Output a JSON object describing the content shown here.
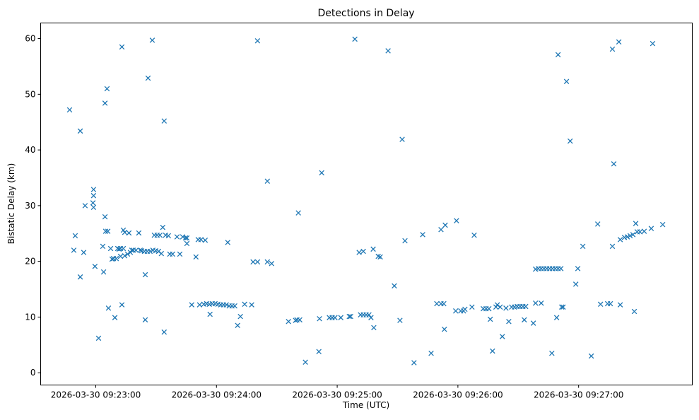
{
  "chart_data": {
    "type": "scatter",
    "title": "Detections in Delay",
    "xlabel": "Time (UTC)",
    "ylabel": "Bistatic Delay (km)",
    "marker": "x",
    "color": "#1f77b4",
    "grid": false,
    "xlim": [
      -27.4,
      296.5
    ],
    "ylim": [
      -2.2,
      62.8
    ],
    "xticks": [
      {
        "value": 0,
        "label": "2026-03-30 09:23:00"
      },
      {
        "value": 60,
        "label": "2026-03-30 09:24:00"
      },
      {
        "value": 120,
        "label": "2026-03-30 09:25:00"
      },
      {
        "value": 180,
        "label": "2026-03-30 09:26:00"
      },
      {
        "value": 240,
        "label": "2026-03-30 09:27:00"
      }
    ],
    "yticks": [
      {
        "value": 0,
        "label": "0"
      },
      {
        "value": 10,
        "label": "10"
      },
      {
        "value": 20,
        "label": "20"
      },
      {
        "value": 30,
        "label": "30"
      },
      {
        "value": 40,
        "label": "40"
      },
      {
        "value": 50,
        "label": "50"
      },
      {
        "value": 60,
        "label": "60"
      }
    ],
    "points": [
      [
        -13,
        47.2
      ],
      [
        -7.7,
        43.4
      ],
      [
        -10.2,
        24.6
      ],
      [
        -10.9,
        22.0
      ],
      [
        -6,
        21.6
      ],
      [
        -7.7,
        17.2
      ],
      [
        -5.3,
        30.0
      ],
      [
        -1.1,
        32.9
      ],
      [
        -1.1,
        31.8
      ],
      [
        -1.4,
        30.5
      ],
      [
        -1.1,
        29.7
      ],
      [
        -0.4,
        19.1
      ],
      [
        1.4,
        6.2
      ],
      [
        4.6,
        48.4
      ],
      [
        5.6,
        51.0
      ],
      [
        4.6,
        28.0
      ],
      [
        4.9,
        25.4
      ],
      [
        6,
        25.4
      ],
      [
        3.5,
        22.7
      ],
      [
        3.9,
        18.1
      ],
      [
        6.3,
        11.6
      ],
      [
        9.5,
        9.9
      ],
      [
        13,
        58.5
      ],
      [
        13,
        12.2
      ],
      [
        13.7,
        25.6
      ],
      [
        14.4,
        25.2
      ],
      [
        16.5,
        25.1
      ],
      [
        7.4,
        22.3
      ],
      [
        8.8,
        20.5
      ],
      [
        10.2,
        20.5
      ],
      [
        8.1,
        20.4
      ],
      [
        10.9,
        22.3
      ],
      [
        12.3,
        22.3
      ],
      [
        13.7,
        22.3
      ],
      [
        11.6,
        22.2
      ],
      [
        12.3,
        20.9
      ],
      [
        14.4,
        21.0
      ],
      [
        15.8,
        21.3
      ],
      [
        17.2,
        21.6
      ],
      [
        17.9,
        22.0
      ],
      [
        18.6,
        22.0
      ],
      [
        20,
        22.0
      ],
      [
        21.4,
        25.1
      ],
      [
        22.1,
        22.0
      ],
      [
        22.8,
        21.9
      ],
      [
        24.2,
        21.8
      ],
      [
        24.6,
        17.6
      ],
      [
        24.6,
        9.5
      ],
      [
        26,
        52.9
      ],
      [
        28.1,
        59.7
      ],
      [
        25.6,
        21.8
      ],
      [
        27,
        21.8
      ],
      [
        28.4,
        22.0
      ],
      [
        29.8,
        21.9
      ],
      [
        29.1,
        24.7
      ],
      [
        30.5,
        24.7
      ],
      [
        31.9,
        24.7
      ],
      [
        31.2,
        21.8
      ],
      [
        32.6,
        21.4
      ],
      [
        33.3,
        26.1
      ],
      [
        34,
        7.3
      ],
      [
        34,
        45.2
      ],
      [
        34.7,
        24.7
      ],
      [
        36.1,
        24.6
      ],
      [
        36.8,
        21.3
      ],
      [
        38.2,
        21.3
      ],
      [
        40.4,
        24.4
      ],
      [
        41.8,
        21.3
      ],
      [
        43.2,
        24.4
      ],
      [
        44.6,
        24.2
      ],
      [
        45.3,
        23.2
      ],
      [
        45.3,
        24.2
      ],
      [
        49.8,
        20.8
      ],
      [
        47.7,
        12.2
      ],
      [
        50.9,
        23.9
      ],
      [
        52.3,
        23.9
      ],
      [
        54.4,
        23.8
      ],
      [
        51.6,
        12.2
      ],
      [
        53.7,
        12.3
      ],
      [
        55.1,
        12.4
      ],
      [
        56.5,
        12.3
      ],
      [
        56.8,
        10.5
      ],
      [
        57.9,
        12.4
      ],
      [
        59.3,
        12.4
      ],
      [
        60.7,
        12.3
      ],
      [
        62.1,
        12.2
      ],
      [
        63.5,
        12.2
      ],
      [
        64.9,
        12.2
      ],
      [
        66.3,
        12.0
      ],
      [
        67.7,
        12.0
      ],
      [
        69.1,
        12.0
      ],
      [
        70.5,
        8.5
      ],
      [
        71.9,
        10.1
      ],
      [
        74,
        12.3
      ],
      [
        65.6,
        23.4
      ],
      [
        77.5,
        12.2
      ],
      [
        78.2,
        19.9
      ],
      [
        80.4,
        19.9
      ],
      [
        80.4,
        59.6
      ],
      [
        85.3,
        34.4
      ],
      [
        85.3,
        19.9
      ],
      [
        87.4,
        19.6
      ],
      [
        95.8,
        9.2
      ],
      [
        99.3,
        9.4
      ],
      [
        100,
        9.5
      ],
      [
        101.4,
        9.5
      ],
      [
        100.7,
        28.7
      ],
      [
        104.2,
        1.9
      ],
      [
        110.9,
        3.8
      ],
      [
        111.2,
        9.7
      ],
      [
        112.3,
        35.9
      ],
      [
        116.1,
        9.9
      ],
      [
        117.5,
        9.9
      ],
      [
        118.9,
        9.9
      ],
      [
        121.8,
        9.9
      ],
      [
        126,
        10.1
      ],
      [
        126.7,
        10.1
      ],
      [
        128.8,
        59.9
      ],
      [
        130.9,
        21.6
      ],
      [
        133,
        21.8
      ],
      [
        131.6,
        10.4
      ],
      [
        133,
        10.4
      ],
      [
        134.4,
        10.4
      ],
      [
        135.8,
        10.4
      ],
      [
        136.8,
        9.9
      ],
      [
        137.9,
        22.2
      ],
      [
        138.2,
        8.1
      ],
      [
        140.4,
        20.9
      ],
      [
        141.4,
        20.8
      ],
      [
        145.3,
        57.8
      ],
      [
        148.4,
        15.6
      ],
      [
        151.2,
        9.4
      ],
      [
        152.3,
        41.9
      ],
      [
        153.7,
        23.7
      ],
      [
        158.2,
        1.8
      ],
      [
        162.5,
        24.8
      ],
      [
        166.7,
        3.5
      ],
      [
        169.5,
        12.4
      ],
      [
        171.6,
        12.4
      ],
      [
        173,
        12.4
      ],
      [
        171.6,
        25.7
      ],
      [
        173.3,
        7.8
      ],
      [
        173.7,
        26.5
      ],
      [
        179.3,
        27.3
      ],
      [
        178.9,
        11.1
      ],
      [
        181.4,
        11.1
      ],
      [
        182.8,
        11.1
      ],
      [
        183.5,
        11.4
      ],
      [
        187,
        11.8
      ],
      [
        188.1,
        24.7
      ],
      [
        192.6,
        11.5
      ],
      [
        194,
        11.5
      ],
      [
        195.4,
        11.5
      ],
      [
        196.1,
        9.6
      ],
      [
        197.2,
        3.9
      ],
      [
        198.9,
        11.8
      ],
      [
        199.6,
        12.2
      ],
      [
        201,
        11.8
      ],
      [
        202.1,
        6.5
      ],
      [
        203.9,
        11.6
      ],
      [
        205.3,
        9.2
      ],
      [
        206.7,
        11.8
      ],
      [
        208.1,
        11.8
      ],
      [
        209.5,
        11.9
      ],
      [
        210.9,
        11.9
      ],
      [
        212.3,
        11.9
      ],
      [
        213.7,
        11.9
      ],
      [
        213,
        9.5
      ],
      [
        217.5,
        8.9
      ],
      [
        218.6,
        12.5
      ],
      [
        218.6,
        18.6
      ],
      [
        220,
        18.7
      ],
      [
        221.4,
        18.7
      ],
      [
        222.8,
        18.7
      ],
      [
        224.2,
        18.7
      ],
      [
        225.6,
        18.7
      ],
      [
        227,
        18.7
      ],
      [
        228.4,
        18.7
      ],
      [
        229.8,
        18.7
      ],
      [
        231.2,
        18.7
      ],
      [
        221.4,
        12.5
      ],
      [
        226.7,
        3.5
      ],
      [
        229.1,
        9.9
      ],
      [
        229.8,
        57.1
      ],
      [
        231.6,
        11.8
      ],
      [
        232.3,
        11.8
      ],
      [
        234,
        52.3
      ],
      [
        235.8,
        41.6
      ],
      [
        239.6,
        18.7
      ],
      [
        238.6,
        15.9
      ],
      [
        242.1,
        22.7
      ],
      [
        246.3,
        3.0
      ],
      [
        249.5,
        26.7
      ],
      [
        250.9,
        12.3
      ],
      [
        254.4,
        12.4
      ],
      [
        255.8,
        12.4
      ],
      [
        256.8,
        58.1
      ],
      [
        256.8,
        22.7
      ],
      [
        257.5,
        37.5
      ],
      [
        260,
        59.4
      ],
      [
        260.7,
        12.2
      ],
      [
        260.7,
        23.9
      ],
      [
        262.8,
        24.3
      ],
      [
        264.2,
        24.4
      ],
      [
        265.6,
        24.6
      ],
      [
        267,
        24.8
      ],
      [
        267.7,
        11.0
      ],
      [
        268.4,
        26.8
      ],
      [
        269.1,
        25.3
      ],
      [
        270.5,
        25.3
      ],
      [
        272.6,
        25.4
      ],
      [
        276.1,
        25.9
      ],
      [
        276.8,
        59.1
      ],
      [
        281.8,
        26.6
      ]
    ]
  }
}
